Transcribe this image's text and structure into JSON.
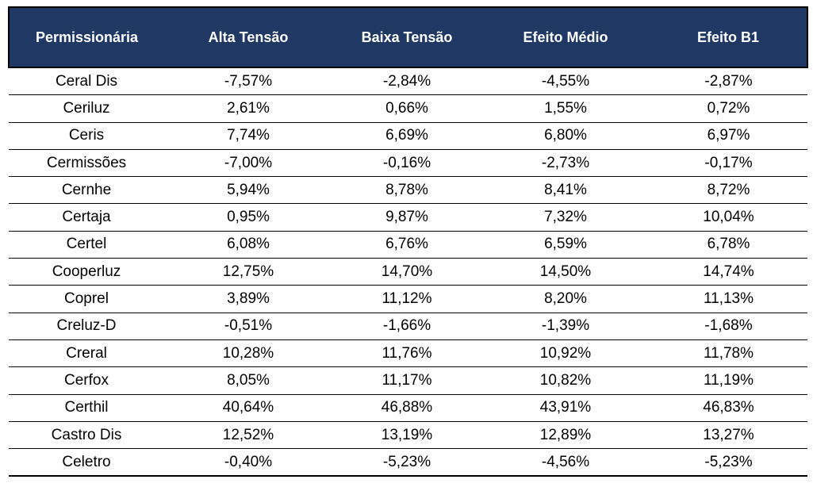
{
  "chart_data": {
    "type": "table",
    "columns": [
      "Permissionária",
      "Alta Tensão",
      "Baixa Tensão",
      "Efeito Médio",
      "Efeito B1"
    ],
    "rows": [
      [
        "Ceral Dis",
        "-7,57%",
        "-2,84%",
        "-4,55%",
        "-2,87%"
      ],
      [
        "Ceriluz",
        "2,61%",
        "0,66%",
        "1,55%",
        "0,72%"
      ],
      [
        "Ceris",
        "7,74%",
        "6,69%",
        "6,80%",
        "6,97%"
      ],
      [
        "Cermissões",
        "-7,00%",
        "-0,16%",
        "-2,73%",
        "-0,17%"
      ],
      [
        "Cernhe",
        "5,94%",
        "8,78%",
        "8,41%",
        "8,72%"
      ],
      [
        "Certaja",
        "0,95%",
        "9,87%",
        "7,32%",
        "10,04%"
      ],
      [
        "Certel",
        "6,08%",
        "6,76%",
        "6,59%",
        "6,78%"
      ],
      [
        "Cooperluz",
        "12,75%",
        "14,70%",
        "14,50%",
        "14,74%"
      ],
      [
        "Coprel",
        "3,89%",
        "11,12%",
        "8,20%",
        "11,13%"
      ],
      [
        "Creluz-D",
        "-0,51%",
        "-1,66%",
        "-1,39%",
        "-1,68%"
      ],
      [
        "Creral",
        "10,28%",
        "11,76%",
        "10,92%",
        "11,78%"
      ],
      [
        "Cerfox",
        "8,05%",
        "11,17%",
        "10,82%",
        "11,19%"
      ],
      [
        "Certhil",
        "40,64%",
        "46,88%",
        "43,91%",
        "46,83%"
      ],
      [
        "Castro Dis",
        "12,52%",
        "13,19%",
        "12,89%",
        "13,27%"
      ],
      [
        "Celetro",
        "-0,40%",
        "-5,23%",
        "-4,56%",
        "-5,23%"
      ]
    ]
  },
  "colors": {
    "header_background": "#1f3864",
    "header_text": "#ffffff",
    "body_text": "#000000",
    "grid_lines": "#000000"
  }
}
